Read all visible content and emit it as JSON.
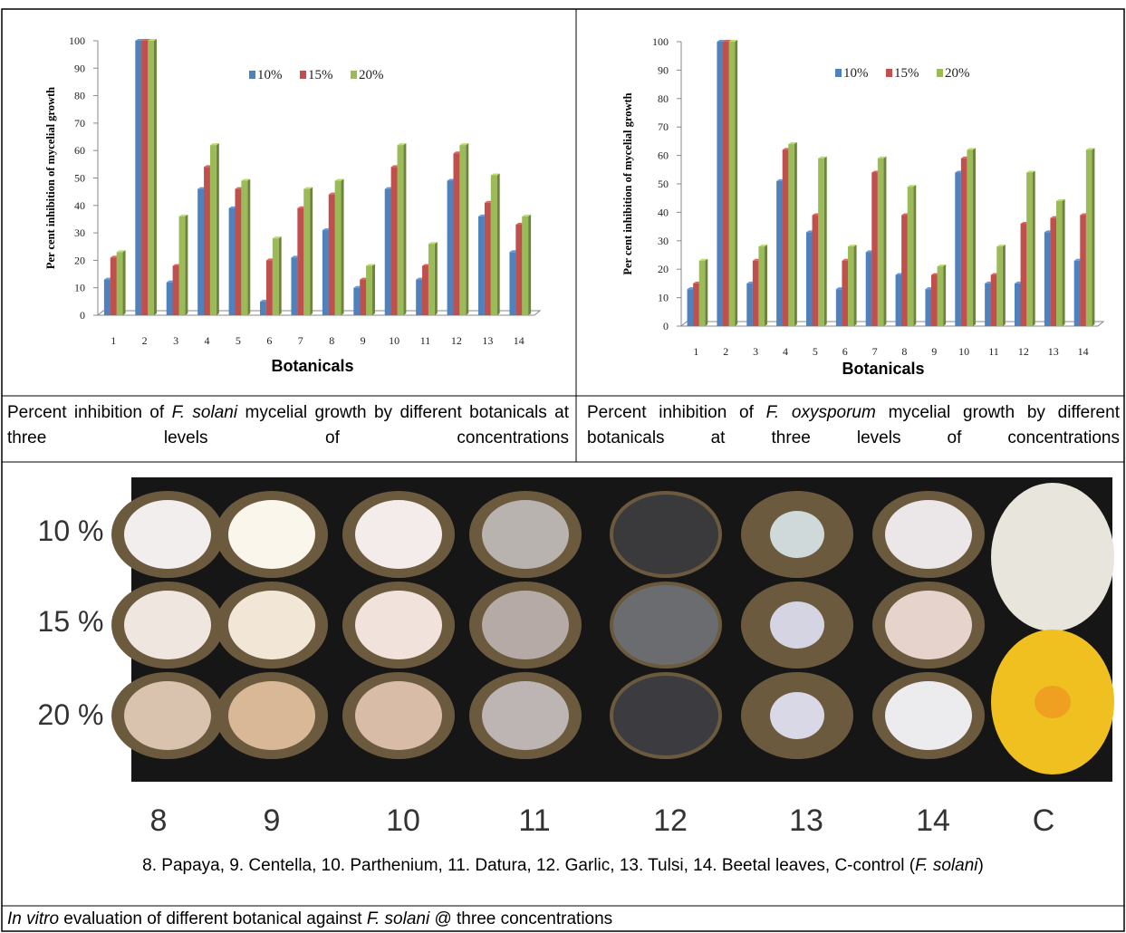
{
  "chart_data": [
    {
      "type": "bar",
      "ylabel": "Per cent inhibition of mycelial growth",
      "xlabel": "Botanicals",
      "categories": [
        "1",
        "2",
        "3",
        "4",
        "5",
        "6",
        "7",
        "8",
        "9",
        "10",
        "11",
        "12",
        "13",
        "14"
      ],
      "series": [
        {
          "name": "10%",
          "color": "#4f81bd",
          "values": [
            13,
            100,
            12,
            46,
            39,
            5,
            21,
            31,
            10,
            46,
            13,
            49,
            36,
            23
          ]
        },
        {
          "name": "15%",
          "color": "#c0504d",
          "values": [
            21,
            100,
            18,
            54,
            46,
            20,
            39,
            44,
            13,
            54,
            18,
            59,
            41,
            33
          ]
        },
        {
          "name": "20%",
          "color": "#9bbb59",
          "values": [
            23,
            100,
            36,
            62,
            49,
            28,
            46,
            49,
            18,
            62,
            26,
            62,
            51,
            36
          ]
        }
      ],
      "ylim": [
        0,
        100
      ],
      "yticks": [
        0,
        10,
        20,
        30,
        40,
        50,
        60,
        70,
        80,
        90,
        100
      ]
    },
    {
      "type": "bar",
      "ylabel": "Per cent inhibition of mycelial growth",
      "xlabel": "Botanicals",
      "categories": [
        "1",
        "2",
        "3",
        "4",
        "5",
        "6",
        "7",
        "8",
        "9",
        "10",
        "11",
        "12",
        "13",
        "14"
      ],
      "series": [
        {
          "name": "10%",
          "color": "#4f81bd",
          "values": [
            13,
            100,
            15,
            51,
            33,
            13,
            26,
            18,
            13,
            54,
            15,
            15,
            33,
            23
          ]
        },
        {
          "name": "15%",
          "color": "#c0504d",
          "values": [
            15,
            100,
            23,
            62,
            39,
            23,
            54,
            39,
            18,
            59,
            18,
            36,
            38,
            39
          ]
        },
        {
          "name": "20%",
          "color": "#9bbb59",
          "values": [
            23,
            100,
            28,
            64,
            59,
            28,
            59,
            49,
            21,
            62,
            28,
            54,
            44,
            62
          ]
        }
      ],
      "ylim": [
        0,
        100
      ],
      "yticks": [
        0,
        10,
        20,
        30,
        40,
        50,
        60,
        70,
        80,
        90,
        100
      ]
    }
  ],
  "captions": [
    [
      "Percent inhibition of ",
      "F. solani",
      " mycelial growth by different botanicals at three levels of concentrations"
    ],
    [
      "Percent inhibition of ",
      "F. oxysporum",
      " mycelial growth by different botanicals at three levels of concentrations"
    ]
  ],
  "photo": {
    "row_labels": [
      "10 %",
      "15 %",
      "20 %"
    ],
    "column_labels": [
      "8",
      "9",
      "10",
      "11",
      "12",
      "13",
      "14",
      "C"
    ],
    "legend": [
      "8. Papaya, 9. Centella, 10. Parthenium, 11. Datura, 12. Garlic, 13. Tulsi, 14. Beetal leaves, C-control (",
      "F. solani",
      ")"
    ]
  },
  "footer": [
    "In vitro",
    " evaluation of different botanical against ",
    "F. solani",
    " @ three concentrations"
  ]
}
